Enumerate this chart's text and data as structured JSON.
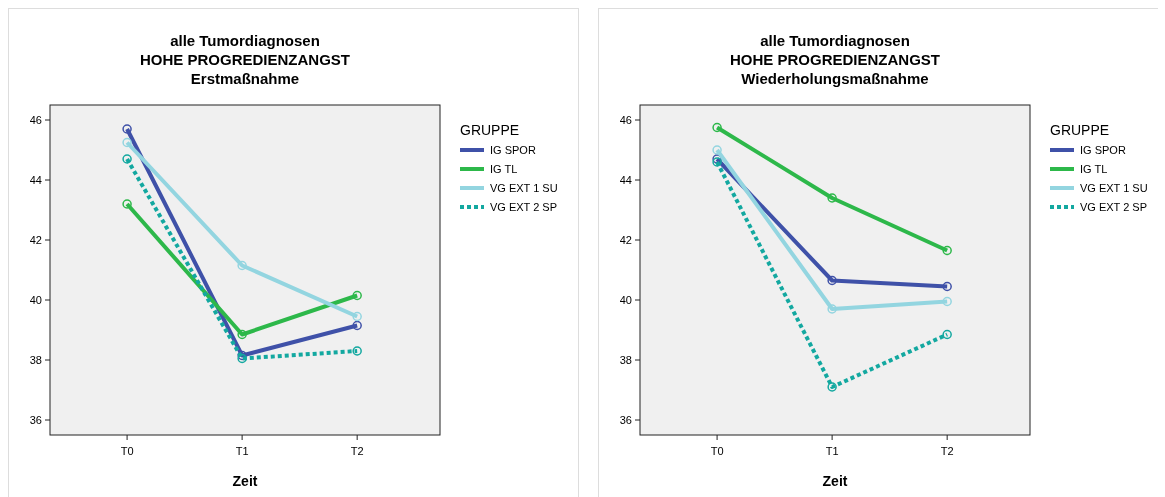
{
  "chart_data": [
    {
      "type": "line",
      "title": "alle Tumordiagnosen\nHOHE PROGREDIENZANGST\nErstmaßnahme",
      "xlabel": "Zeit",
      "legend_title": "GRUPPE",
      "legend": "right",
      "marker": "circle",
      "categories": [
        "T0",
        "T1",
        "T2"
      ],
      "ylim": [
        35.5,
        46.5
      ],
      "yticks": [
        36,
        38,
        40,
        42,
        44,
        46
      ],
      "series": [
        {
          "name": "IG SPOR",
          "color": "#3f51a8",
          "values": [
            45.7,
            38.15,
            39.15
          ]
        },
        {
          "name": "IG TL",
          "color": "#2db84a",
          "values": [
            43.2,
            38.85,
            40.15
          ]
        },
        {
          "name": "VG EXT 1 SU",
          "color": "#93d5e0",
          "values": [
            45.25,
            41.15,
            39.45
          ]
        },
        {
          "name": "VG EXT 2 SP",
          "color": "#13a8a0",
          "values": [
            44.7,
            38.05,
            38.3
          ],
          "line_style": "dotted"
        }
      ]
    },
    {
      "type": "line",
      "title": "alle Tumordiagnosen\nHOHE PROGREDIENZANGST\nWiederholungsmaßnahme",
      "xlabel": "Zeit",
      "legend_title": "GRUPPE",
      "legend": "right",
      "marker": "circle",
      "categories": [
        "T0",
        "T1",
        "T2"
      ],
      "ylim": [
        35.5,
        46.5
      ],
      "yticks": [
        36,
        38,
        40,
        42,
        44,
        46
      ],
      "series": [
        {
          "name": "IG SPOR",
          "color": "#3f51a8",
          "values": [
            44.7,
            40.65,
            40.45
          ]
        },
        {
          "name": "IG TL",
          "color": "#2db84a",
          "values": [
            45.75,
            43.4,
            41.65
          ]
        },
        {
          "name": "VG EXT 1 SU",
          "color": "#93d5e0",
          "values": [
            45.0,
            39.7,
            39.95
          ]
        },
        {
          "name": "VG EXT 2 SP",
          "color": "#13a8a0",
          "values": [
            44.6,
            37.1,
            38.85
          ],
          "line_style": "dotted"
        }
      ]
    }
  ]
}
